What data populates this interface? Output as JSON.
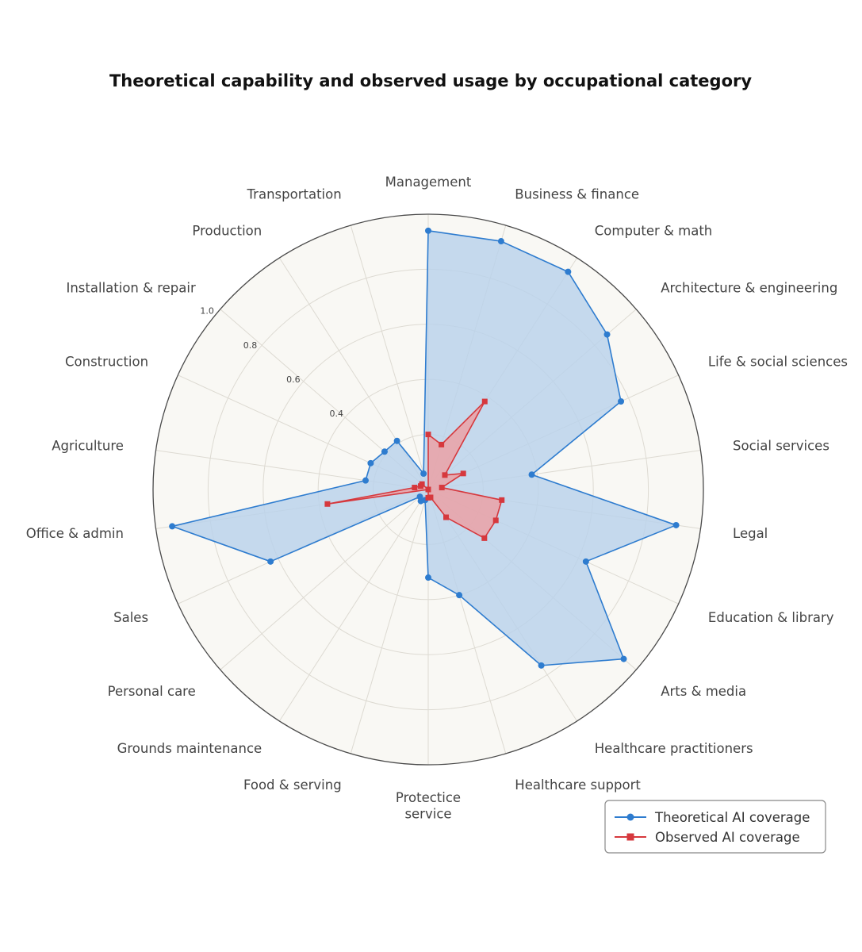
{
  "chart_data": {
    "type": "radar",
    "title": "Theoretical capability and observed usage by occupational category",
    "categories": [
      "Management",
      "Business & finance",
      "Computer & math",
      "Architecture & engineering",
      "Life & social sciences",
      "Social services",
      "Legal",
      "Education & library",
      "Arts & media",
      "Healthcare practitioners",
      "Healthcare support",
      "Protectice service",
      "Food & serving",
      "Grounds maintenance",
      "Personal care",
      "Sales",
      "Office & admin",
      "Agriculture",
      "Construction",
      "Installation & repair",
      "Production",
      "Transportation"
    ],
    "rlim": [
      0,
      1
    ],
    "rticks": [
      0.4,
      0.6,
      0.8,
      1.0
    ],
    "rtick_labels": [
      "0.4",
      "0.6",
      "0.8",
      "1.0"
    ],
    "series": [
      {
        "name": "Theoretical AI coverage",
        "color": "#2e7ccf",
        "fill": "#b9d2ec",
        "marker": "circle",
        "values": [
          0.94,
          0.94,
          0.94,
          0.86,
          0.77,
          0.38,
          0.91,
          0.63,
          0.94,
          0.76,
          0.4,
          0.32,
          0.04,
          0.05,
          0.04,
          0.63,
          0.94,
          0.23,
          0.23,
          0.21,
          0.21,
          0.06
        ]
      },
      {
        "name": "Observed AI coverage",
        "color": "#d6383d",
        "fill": "#eca0a3",
        "marker": "square",
        "values": [
          0.2,
          0.17,
          0.38,
          0.08,
          0.14,
          0.05,
          0.27,
          0.27,
          0.27,
          0.12,
          0.03,
          0.03,
          0.0,
          0.0,
          0.0,
          0.0,
          0.37,
          0.05,
          0.03,
          0.03,
          0.0,
          0.0
        ]
      }
    ],
    "legend": {
      "position": "bottom-right",
      "entries": [
        "Theoretical AI coverage",
        "Observed AI coverage"
      ]
    }
  }
}
